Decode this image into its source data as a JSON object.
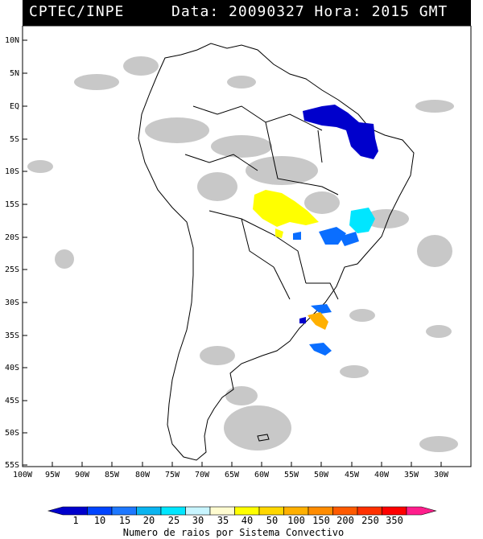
{
  "header": {
    "source": "CPTEC/INPE",
    "datetime": "Data: 20090327 Hora: 2015 GMT"
  },
  "map": {
    "lat_labels": [
      "10N",
      "5N",
      "EQ",
      "5S",
      "10S",
      "15S",
      "20S",
      "25S",
      "30S",
      "35S",
      "40S",
      "45S",
      "50S",
      "55S"
    ],
    "lon_labels": [
      "100W",
      "95W",
      "90W",
      "85W",
      "80W",
      "75W",
      "70W",
      "65W",
      "60W",
      "55W",
      "50W",
      "45W",
      "40W",
      "35W",
      "30W"
    ],
    "region": "South America"
  },
  "legend": {
    "title": "Numero de raios por Sistema Convectivo",
    "labels": [
      "1",
      "10",
      "15",
      "20",
      "25",
      "30",
      "35",
      "40",
      "50",
      "100",
      "150",
      "200",
      "250",
      "350"
    ],
    "colors": [
      "#0000cc",
      "#0044ff",
      "#1e78ff",
      "#0ab4f0",
      "#00e6ff",
      "#c8f5ff",
      "#fffcd0",
      "#ffff00",
      "#ffd700",
      "#ffb000",
      "#ff8c00",
      "#ff5a00",
      "#ff3000",
      "#ff0000",
      "#ff1e8c"
    ]
  }
}
